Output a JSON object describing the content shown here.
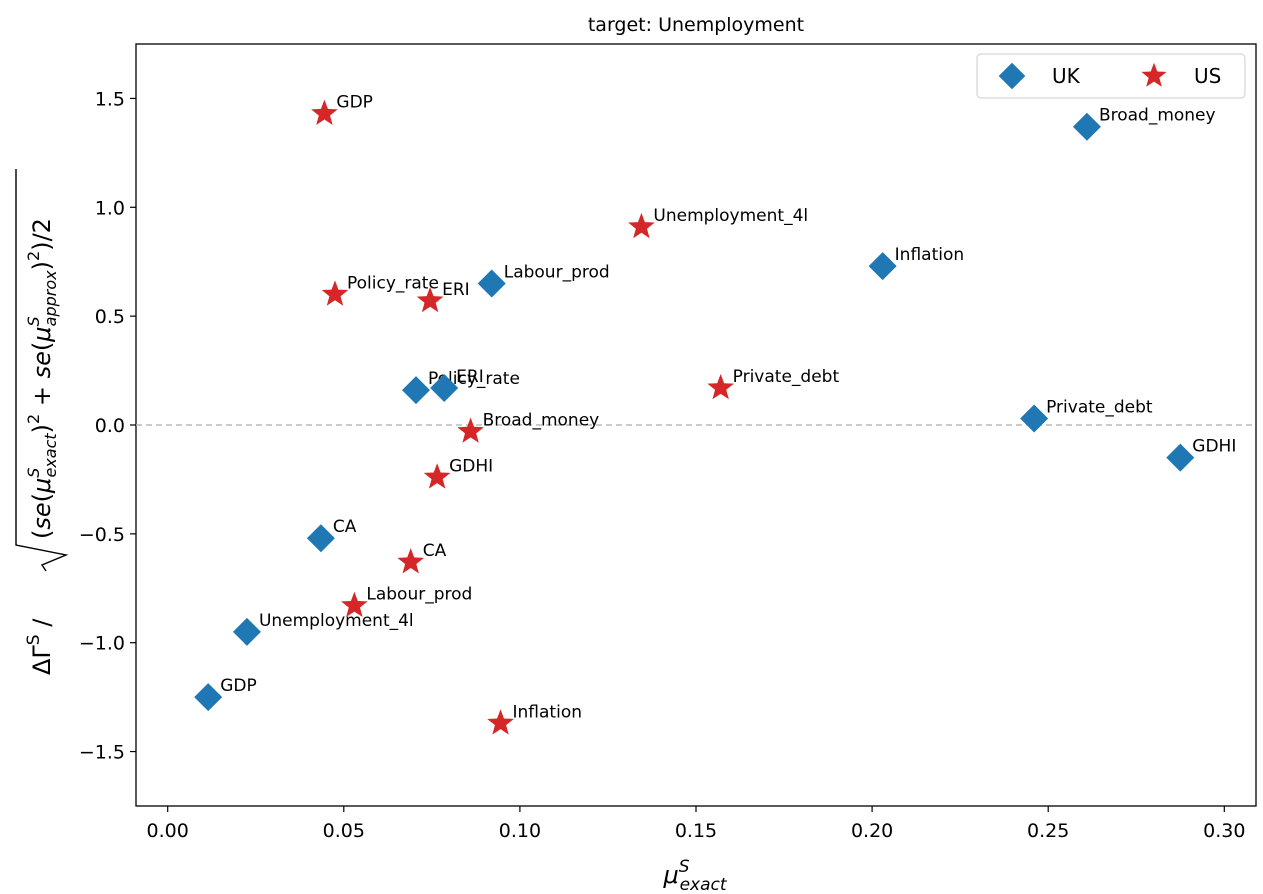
{
  "chart_data": {
    "type": "scatter",
    "title": "target: Unemployment",
    "xlim": [
      -0.009,
      0.309
    ],
    "ylim": [
      -1.75,
      1.75
    ],
    "xticks": [
      {
        "value": 0.0,
        "label": "0.00"
      },
      {
        "value": 0.05,
        "label": "0.05"
      },
      {
        "value": 0.1,
        "label": "0.10"
      },
      {
        "value": 0.15,
        "label": "0.15"
      },
      {
        "value": 0.2,
        "label": "0.20"
      },
      {
        "value": 0.25,
        "label": "0.25"
      },
      {
        "value": 0.3,
        "label": "0.30"
      }
    ],
    "yticks": [
      {
        "value": 1.5,
        "label": "1.5"
      },
      {
        "value": 1.0,
        "label": "1.0"
      },
      {
        "value": 0.5,
        "label": "0.5"
      },
      {
        "value": 0.0,
        "label": "0.0"
      },
      {
        "value": -0.5,
        "label": "−0.5"
      },
      {
        "value": -1.0,
        "label": "−1.0"
      },
      {
        "value": -1.5,
        "label": "−1.5"
      }
    ],
    "reference_line": {
      "y": 0,
      "style": "dashed",
      "color": "#bbbbbb"
    },
    "legend_position": "top-right",
    "grid": false,
    "series": [
      {
        "name": "UK",
        "marker": "diamond",
        "color": "#1f77b4",
        "points": [
          {
            "label": "Broad_money",
            "x": 0.261,
            "y": 1.37
          },
          {
            "label": "Inflation",
            "x": 0.203,
            "y": 0.73
          },
          {
            "label": "Labour_prod",
            "x": 0.092,
            "y": 0.65
          },
          {
            "label": "Policy_rate",
            "x": 0.0705,
            "y": 0.16
          },
          {
            "label": "ERI",
            "x": 0.0785,
            "y": 0.17
          },
          {
            "label": "Private_debt",
            "x": 0.246,
            "y": 0.03
          },
          {
            "label": "GDHI",
            "x": 0.2875,
            "y": -0.15
          },
          {
            "label": "CA",
            "x": 0.0435,
            "y": -0.52
          },
          {
            "label": "Unemployment_4l",
            "x": 0.0225,
            "y": -0.95
          },
          {
            "label": "GDP",
            "x": 0.0115,
            "y": -1.25
          }
        ]
      },
      {
        "name": "US",
        "marker": "star",
        "color": "#d62728",
        "points": [
          {
            "label": "GDP",
            "x": 0.0445,
            "y": 1.43
          },
          {
            "label": "Unemployment_4l",
            "x": 0.1345,
            "y": 0.91
          },
          {
            "label": "Policy_rate",
            "x": 0.0475,
            "y": 0.6
          },
          {
            "label": "ERI",
            "x": 0.0745,
            "y": 0.57
          },
          {
            "label": "Private_debt",
            "x": 0.157,
            "y": 0.17
          },
          {
            "label": "Broad_money",
            "x": 0.086,
            "y": -0.03
          },
          {
            "label": "GDHI",
            "x": 0.0765,
            "y": -0.24
          },
          {
            "label": "CA",
            "x": 0.069,
            "y": -0.63
          },
          {
            "label": "Labour_prod",
            "x": 0.053,
            "y": -0.83
          },
          {
            "label": "Inflation",
            "x": 0.0945,
            "y": -1.37
          }
        ]
      }
    ]
  }
}
